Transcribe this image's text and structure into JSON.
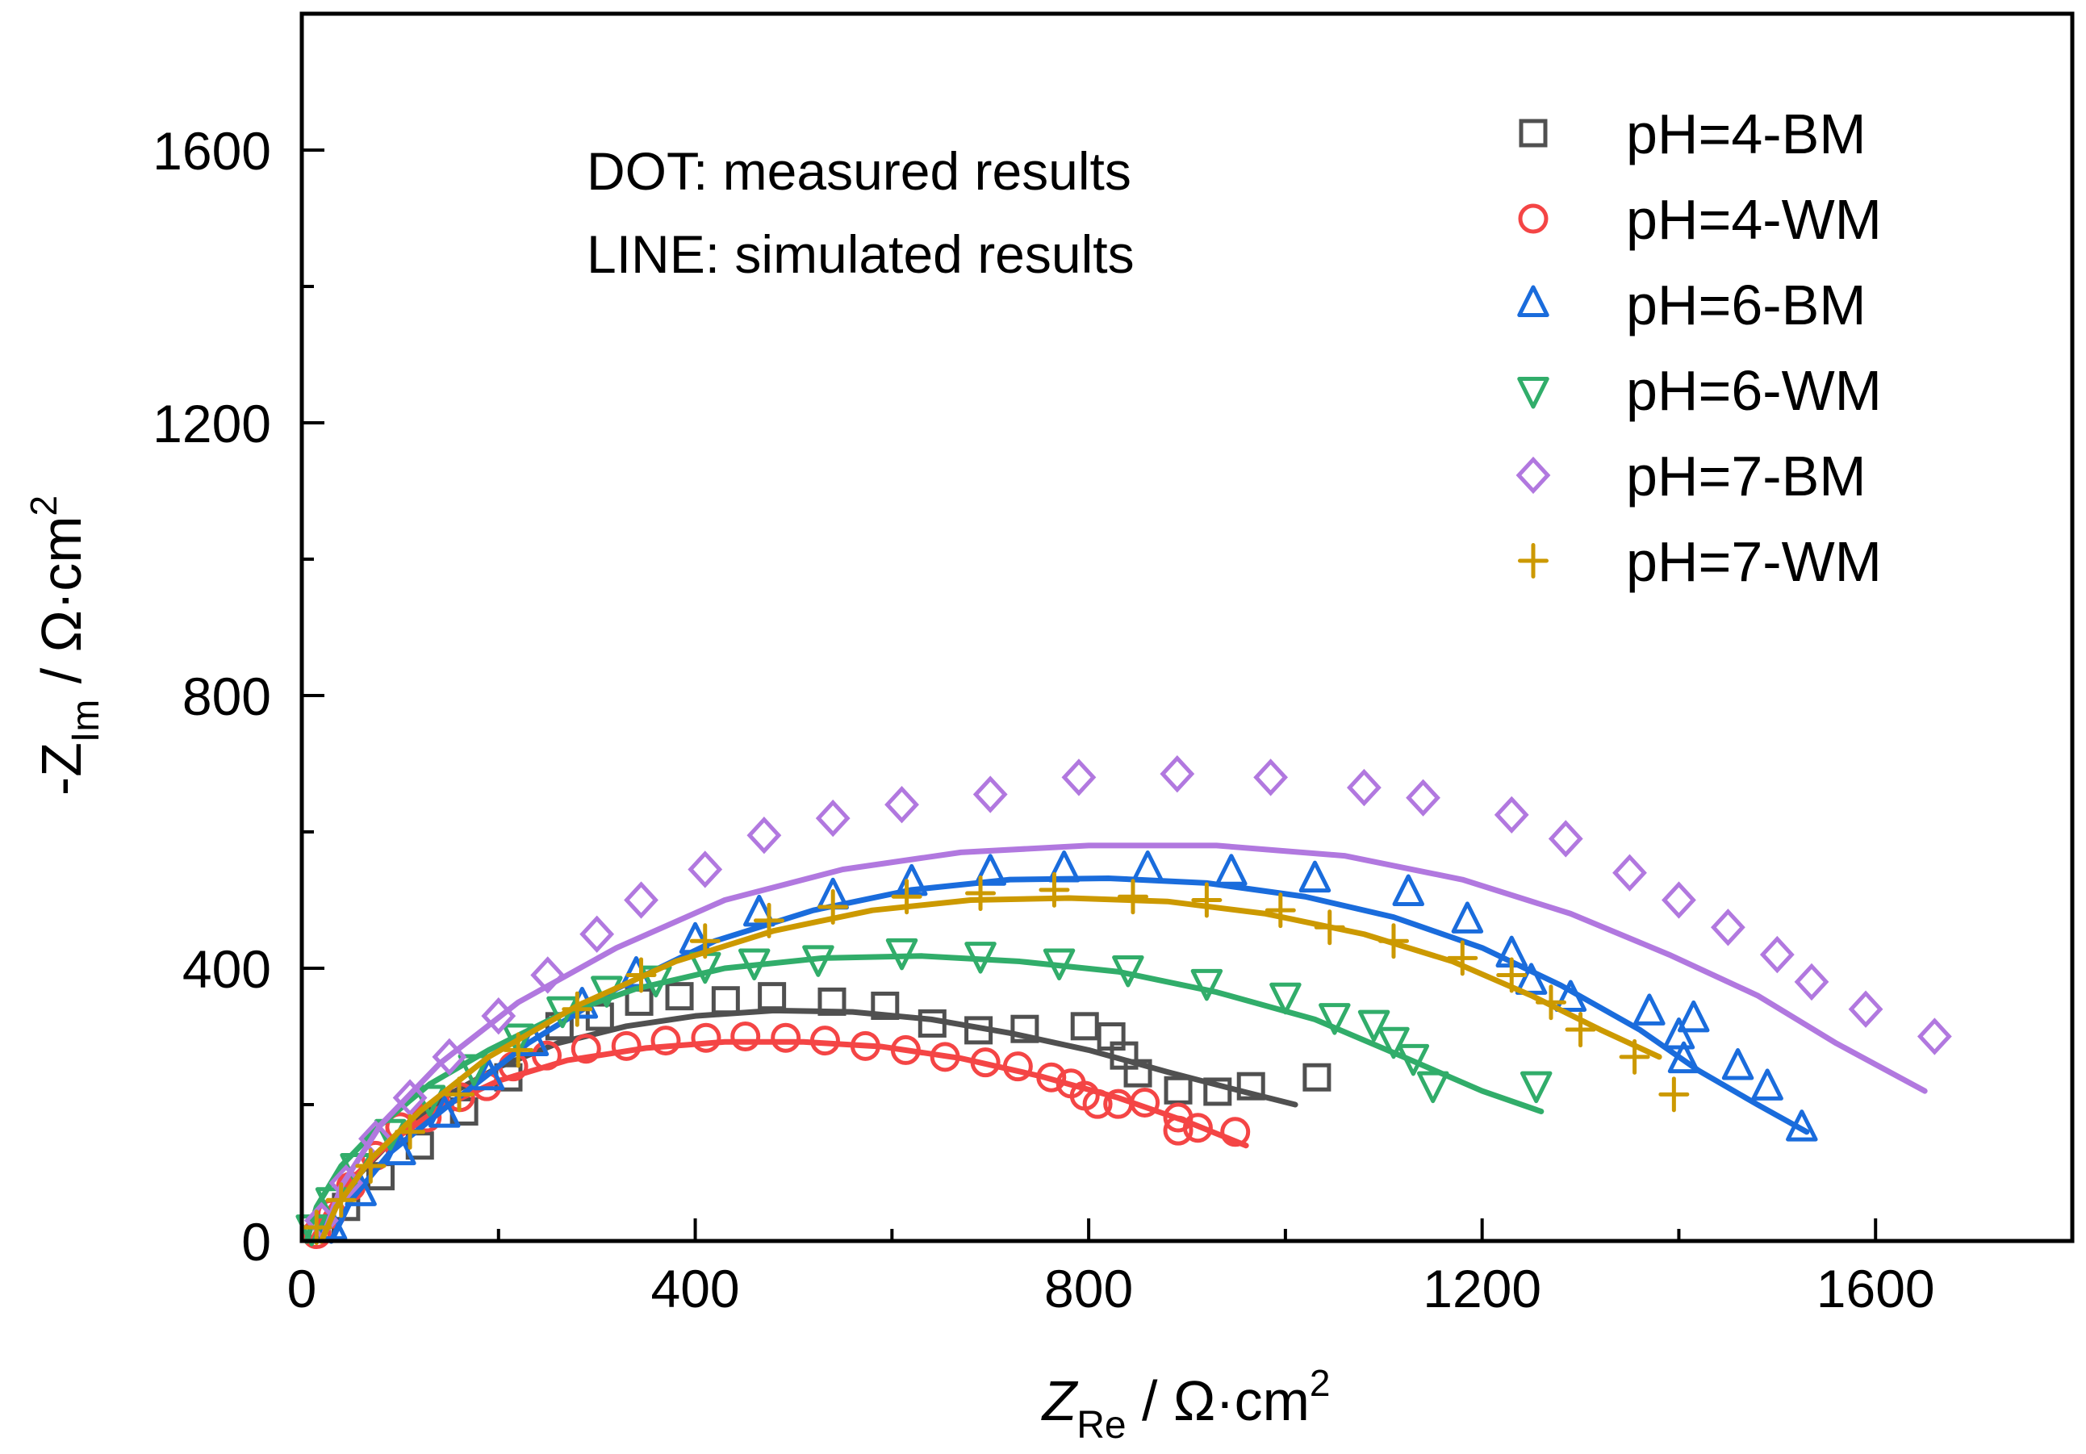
{
  "chart_data": {
    "type": "scatter",
    "title": "",
    "xlabel": {
      "main": "Z",
      "sub": "Re",
      "unit": " / Ω·cm",
      "sup": "2"
    },
    "ylabel": {
      "main": "-Z",
      "sub": "Im",
      "unit": " / Ω·cm",
      "sup": "2"
    },
    "xlim": [
      0,
      1800
    ],
    "ylim": [
      0,
      1800
    ],
    "xticks": [
      0,
      400,
      800,
      1200,
      1600
    ],
    "yticks": [
      0,
      400,
      800,
      1200,
      1600
    ],
    "xminor": [
      200,
      600,
      1000,
      1400
    ],
    "yminor": [
      200,
      600,
      1000,
      1400
    ],
    "tick_labels_x": [
      "0",
      "400",
      "800",
      "1200",
      "1600"
    ],
    "tick_labels_y": [
      "0",
      "400",
      "800",
      "1200",
      "1600"
    ],
    "grid": false,
    "legend_position": "top-right",
    "annotations": [
      "DOT: measured results",
      "LINE: simulated results"
    ],
    "series": [
      {
        "name": "pH=4-BM",
        "marker": "square",
        "color": "#505050",
        "points": [
          [
            20,
            18
          ],
          [
            45,
            50
          ],
          [
            80,
            95
          ],
          [
            120,
            140
          ],
          [
            165,
            190
          ],
          [
            210,
            240
          ],
          [
            262,
            315
          ],
          [
            303,
            329
          ],
          [
            343,
            351
          ],
          [
            384,
            359
          ],
          [
            431,
            353
          ],
          [
            478,
            359
          ],
          [
            539,
            351
          ],
          [
            593,
            345
          ],
          [
            641,
            319
          ],
          [
            688,
            309
          ],
          [
            735,
            311
          ],
          [
            796,
            315
          ],
          [
            823,
            300
          ],
          [
            836,
            272
          ],
          [
            850,
            246
          ],
          [
            891,
            221
          ],
          [
            931,
            219
          ],
          [
            965,
            227
          ],
          [
            1032,
            240
          ]
        ],
        "fit": [
          [
            20,
            0
          ],
          [
            30,
            40
          ],
          [
            60,
            100
          ],
          [
            100,
            160
          ],
          [
            150,
            215
          ],
          [
            200,
            255
          ],
          [
            260,
            290
          ],
          [
            330,
            315
          ],
          [
            400,
            330
          ],
          [
            480,
            338
          ],
          [
            560,
            336
          ],
          [
            640,
            325
          ],
          [
            720,
            305
          ],
          [
            800,
            280
          ],
          [
            880,
            248
          ],
          [
            960,
            218
          ],
          [
            1010,
            200
          ]
        ]
      },
      {
        "name": "pH=4-WM",
        "marker": "circle",
        "color": "#f44545",
        "points": [
          [
            15,
            10
          ],
          [
            30,
            40
          ],
          [
            50,
            80
          ],
          [
            75,
            125
          ],
          [
            100,
            167
          ],
          [
            127,
            181
          ],
          [
            161,
            211
          ],
          [
            188,
            227
          ],
          [
            215,
            256
          ],
          [
            249,
            272
          ],
          [
            289,
            282
          ],
          [
            330,
            286
          ],
          [
            370,
            294
          ],
          [
            411,
            298
          ],
          [
            451,
            300
          ],
          [
            492,
            298
          ],
          [
            532,
            294
          ],
          [
            573,
            286
          ],
          [
            614,
            280
          ],
          [
            654,
            270
          ],
          [
            695,
            262
          ],
          [
            728,
            256
          ],
          [
            762,
            240
          ],
          [
            782,
            231
          ],
          [
            796,
            213
          ],
          [
            809,
            201
          ],
          [
            830,
            201
          ],
          [
            857,
            203
          ],
          [
            891,
            181
          ],
          [
            891,
            162
          ],
          [
            911,
            166
          ],
          [
            949,
            160
          ]
        ],
        "fit": [
          [
            10,
            0
          ],
          [
            25,
            40
          ],
          [
            50,
            90
          ],
          [
            90,
            145
          ],
          [
            140,
            195
          ],
          [
            200,
            235
          ],
          [
            270,
            265
          ],
          [
            350,
            283
          ],
          [
            430,
            292
          ],
          [
            510,
            292
          ],
          [
            590,
            285
          ],
          [
            670,
            268
          ],
          [
            750,
            242
          ],
          [
            830,
            210
          ],
          [
            900,
            175
          ],
          [
            960,
            140
          ]
        ]
      },
      {
        "name": "pH=6-BM",
        "marker": "triangle-up",
        "color": "#1a6cdc",
        "points": [
          [
            30,
            20
          ],
          [
            60,
            70
          ],
          [
            100,
            130
          ],
          [
            145,
            185
          ],
          [
            190,
            240
          ],
          [
            235,
            290
          ],
          [
            285,
            345
          ],
          [
            340,
            390
          ],
          [
            400,
            440
          ],
          [
            465,
            480
          ],
          [
            540,
            505
          ],
          [
            620,
            525
          ],
          [
            700,
            540
          ],
          [
            775,
            545
          ],
          [
            860,
            545
          ],
          [
            945,
            540
          ],
          [
            1030,
            530
          ],
          [
            1125,
            510
          ],
          [
            1185,
            470
          ],
          [
            1230,
            420
          ],
          [
            1250,
            380
          ],
          [
            1290,
            355
          ],
          [
            1370,
            335
          ],
          [
            1400,
            300
          ],
          [
            1415,
            325
          ],
          [
            1405,
            265
          ],
          [
            1460,
            255
          ],
          [
            1490,
            225
          ],
          [
            1525,
            165
          ]
        ],
        "fit": [
          [
            30,
            0
          ],
          [
            50,
            60
          ],
          [
            90,
            130
          ],
          [
            150,
            200
          ],
          [
            230,
            290
          ],
          [
            320,
            370
          ],
          [
            420,
            440
          ],
          [
            520,
            485
          ],
          [
            620,
            515
          ],
          [
            720,
            530
          ],
          [
            820,
            532
          ],
          [
            920,
            525
          ],
          [
            1020,
            505
          ],
          [
            1110,
            475
          ],
          [
            1200,
            430
          ],
          [
            1280,
            375
          ],
          [
            1360,
            310
          ],
          [
            1420,
            250
          ],
          [
            1480,
            200
          ],
          [
            1530,
            160
          ]
        ]
      },
      {
        "name": "pH=6-WM",
        "marker": "triangle-down",
        "color": "#31ad6a",
        "points": [
          [
            10,
            20
          ],
          [
            30,
            60
          ],
          [
            55,
            110
          ],
          [
            90,
            160
          ],
          [
            130,
            210
          ],
          [
            175,
            255
          ],
          [
            220,
            300
          ],
          [
            265,
            340
          ],
          [
            310,
            370
          ],
          [
            360,
            385
          ],
          [
            410,
            405
          ],
          [
            460,
            410
          ],
          [
            525,
            415
          ],
          [
            610,
            425
          ],
          [
            690,
            420
          ],
          [
            770,
            410
          ],
          [
            840,
            400
          ],
          [
            920,
            380
          ],
          [
            1000,
            360
          ],
          [
            1050,
            330
          ],
          [
            1090,
            320
          ],
          [
            1110,
            295
          ],
          [
            1130,
            270
          ],
          [
            1150,
            230
          ],
          [
            1255,
            230
          ]
        ],
        "fit": [
          [
            5,
            0
          ],
          [
            15,
            50
          ],
          [
            40,
            110
          ],
          [
            80,
            170
          ],
          [
            130,
            230
          ],
          [
            190,
            280
          ],
          [
            260,
            330
          ],
          [
            340,
            370
          ],
          [
            430,
            400
          ],
          [
            530,
            415
          ],
          [
            630,
            418
          ],
          [
            730,
            410
          ],
          [
            830,
            395
          ],
          [
            930,
            365
          ],
          [
            1030,
            325
          ],
          [
            1120,
            270
          ],
          [
            1200,
            220
          ],
          [
            1260,
            190
          ]
        ]
      },
      {
        "name": "pH=7-BM",
        "marker": "diamond",
        "color": "#b178df",
        "points": [
          [
            20,
            30
          ],
          [
            45,
            85
          ],
          [
            75,
            150
          ],
          [
            110,
            210
          ],
          [
            150,
            270
          ],
          [
            200,
            330
          ],
          [
            250,
            390
          ],
          [
            300,
            450
          ],
          [
            345,
            500
          ],
          [
            410,
            545
          ],
          [
            470,
            595
          ],
          [
            540,
            620
          ],
          [
            610,
            640
          ],
          [
            700,
            655
          ],
          [
            790,
            680
          ],
          [
            890,
            685
          ],
          [
            985,
            680
          ],
          [
            1080,
            665
          ],
          [
            1140,
            650
          ],
          [
            1230,
            625
          ],
          [
            1285,
            590
          ],
          [
            1350,
            540
          ],
          [
            1400,
            500
          ],
          [
            1450,
            460
          ],
          [
            1500,
            420
          ],
          [
            1535,
            380
          ],
          [
            1590,
            340
          ],
          [
            1660,
            300
          ]
        ],
        "fit": [
          [
            20,
            0
          ],
          [
            40,
            80
          ],
          [
            80,
            170
          ],
          [
            140,
            260
          ],
          [
            220,
            350
          ],
          [
            320,
            430
          ],
          [
            430,
            500
          ],
          [
            550,
            545
          ],
          [
            670,
            570
          ],
          [
            800,
            580
          ],
          [
            930,
            580
          ],
          [
            1060,
            565
          ],
          [
            1180,
            530
          ],
          [
            1290,
            480
          ],
          [
            1390,
            420
          ],
          [
            1480,
            360
          ],
          [
            1560,
            290
          ],
          [
            1650,
            220
          ]
        ]
      },
      {
        "name": "pH=7-WM",
        "marker": "plus",
        "color": "#cc9900",
        "points": [
          [
            15,
            20
          ],
          [
            40,
            60
          ],
          [
            70,
            110
          ],
          [
            110,
            160
          ],
          [
            160,
            215
          ],
          [
            220,
            280
          ],
          [
            280,
            340
          ],
          [
            345,
            390
          ],
          [
            410,
            440
          ],
          [
            475,
            470
          ],
          [
            540,
            490
          ],
          [
            615,
            505
          ],
          [
            690,
            510
          ],
          [
            765,
            515
          ],
          [
            845,
            505
          ],
          [
            920,
            500
          ],
          [
            995,
            485
          ],
          [
            1045,
            460
          ],
          [
            1110,
            440
          ],
          [
            1180,
            415
          ],
          [
            1230,
            390
          ],
          [
            1270,
            350
          ],
          [
            1300,
            310
          ],
          [
            1355,
            270
          ],
          [
            1395,
            215
          ]
        ],
        "fit": [
          [
            20,
            0
          ],
          [
            35,
            50
          ],
          [
            70,
            120
          ],
          [
            120,
            190
          ],
          [
            190,
            270
          ],
          [
            280,
            345
          ],
          [
            380,
            410
          ],
          [
            480,
            455
          ],
          [
            580,
            485
          ],
          [
            680,
            500
          ],
          [
            780,
            503
          ],
          [
            880,
            498
          ],
          [
            980,
            480
          ],
          [
            1080,
            450
          ],
          [
            1170,
            410
          ],
          [
            1250,
            360
          ],
          [
            1320,
            310
          ],
          [
            1380,
            270
          ]
        ]
      }
    ]
  }
}
